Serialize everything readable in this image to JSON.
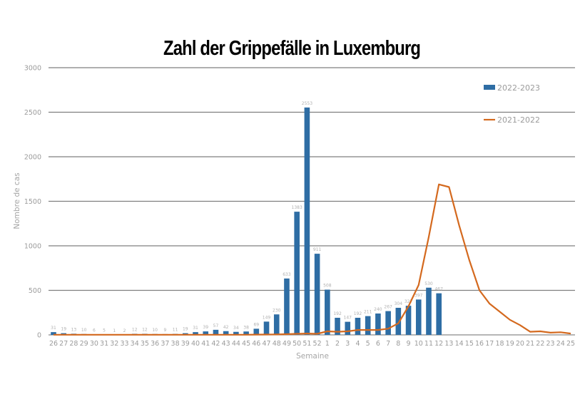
{
  "chart_data": {
    "type": "bar",
    "title": "Zahl der Grippefälle in Luxemburg",
    "xlabel": "Semaine",
    "ylabel": "Nombre de cas",
    "ylim": [
      0,
      3000
    ],
    "yticks": [
      0,
      500,
      1000,
      1500,
      2000,
      2500,
      3000
    ],
    "grid": true,
    "legend_position": "top-right",
    "categories": [
      "26",
      "27",
      "28",
      "29",
      "30",
      "31",
      "32",
      "33",
      "34",
      "35",
      "36",
      "37",
      "38",
      "39",
      "40",
      "41",
      "42",
      "43",
      "44",
      "45",
      "46",
      "47",
      "48",
      "49",
      "50",
      "51",
      "52",
      "1",
      "2",
      "3",
      "4",
      "5",
      "6",
      "7",
      "8",
      "9",
      "10",
      "11",
      "12",
      "13",
      "14",
      "15",
      "16",
      "17",
      "18",
      "19",
      "20",
      "21",
      "22",
      "23",
      "24",
      "25"
    ],
    "series": [
      {
        "name": "2022-2023",
        "type": "bar",
        "color": "#2e6da4",
        "values": [
          31,
          19,
          13,
          10,
          6,
          5,
          1,
          2,
          12,
          12,
          10,
          9,
          11,
          19,
          31,
          39,
          57,
          42,
          34,
          38,
          69,
          149,
          230,
          633,
          1383,
          2553,
          911,
          508,
          192,
          147,
          192,
          211,
          240,
          267,
          304,
          327,
          397,
          530,
          467,
          null,
          null,
          null,
          null,
          null,
          null,
          null,
          null,
          null,
          null,
          null,
          null,
          null
        ]
      },
      {
        "name": "2021-2022",
        "type": "line",
        "color": "#d4691e",
        "values": [
          2,
          2,
          2,
          2,
          2,
          2,
          2,
          2,
          2,
          2,
          2,
          2,
          2,
          2,
          2,
          2,
          2,
          2,
          2,
          2,
          3,
          4,
          5,
          8,
          12,
          15,
          12,
          40,
          35,
          40,
          55,
          55,
          55,
          70,
          130,
          320,
          560,
          1100,
          1690,
          1660,
          1230,
          840,
          500,
          350,
          260,
          170,
          110,
          35,
          40,
          25,
          30,
          15
        ]
      }
    ]
  },
  "header": {
    "title": "Zahl der Grippefälle in Luxemburg"
  },
  "axes": {
    "y_label": "Nombre de cas",
    "x_label": "Semaine",
    "y_ticks": [
      "0",
      "500",
      "1000",
      "1500",
      "2000",
      "2500",
      "3000"
    ]
  },
  "legend": [
    {
      "label": "2022-2023",
      "color": "#2e6da4",
      "kind": "bar"
    },
    {
      "label": "2021-2022",
      "color": "#d4691e",
      "kind": "line"
    }
  ]
}
